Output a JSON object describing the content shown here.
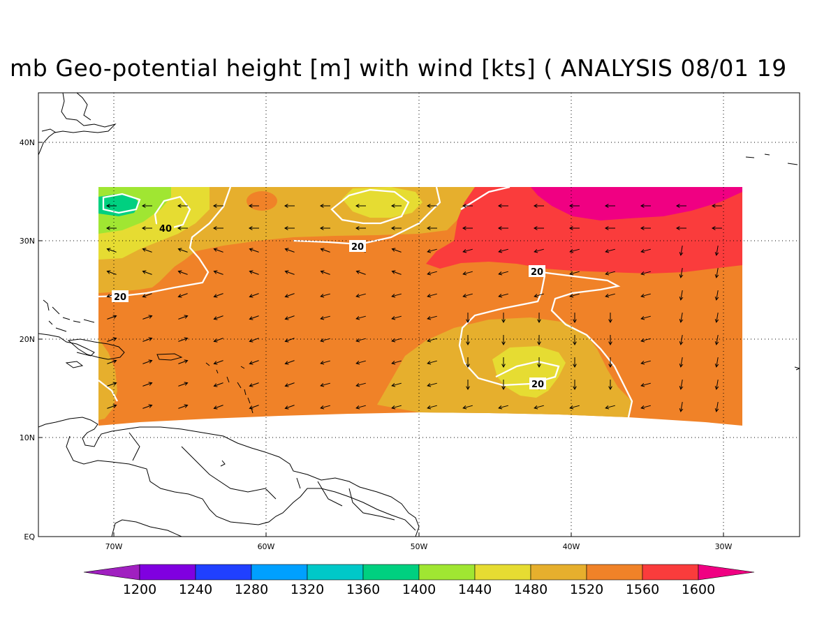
{
  "title": "mb Geo-potential height [m] with wind [kts] ( ANALYSIS 08/01 19",
  "axes": {
    "lat_ticks": [
      "EQ",
      "10N",
      "20N",
      "30N",
      "40N"
    ],
    "lon_ticks": [
      "70W",
      "60W",
      "50W",
      "40W",
      "30W"
    ]
  },
  "colorbar": {
    "labels": [
      "1200",
      "1240",
      "1280",
      "1320",
      "1360",
      "1400",
      "1440",
      "1480",
      "1520",
      "1560",
      "1600"
    ],
    "colors": [
      "#a020c0",
      "#8000e0",
      "#2040ff",
      "#00a0ff",
      "#00c8c8",
      "#00d080",
      "#a0e632",
      "#e6dc32",
      "#e6af2d",
      "#f08228",
      "#fa3c3c",
      "#f00082"
    ]
  },
  "contour_labels": [
    "40",
    "20",
    "20",
    "20",
    "20"
  ],
  "colors": {
    "c1440": "#a0e632",
    "c1400": "#00d080",
    "c1480": "#e6dc32",
    "c1520": "#e6af2d",
    "c1560": "#f08228",
    "c1600": "#fa3c3c",
    "c1640": "#f00082",
    "isotach": "#ffffff",
    "coast": "#000000"
  }
}
